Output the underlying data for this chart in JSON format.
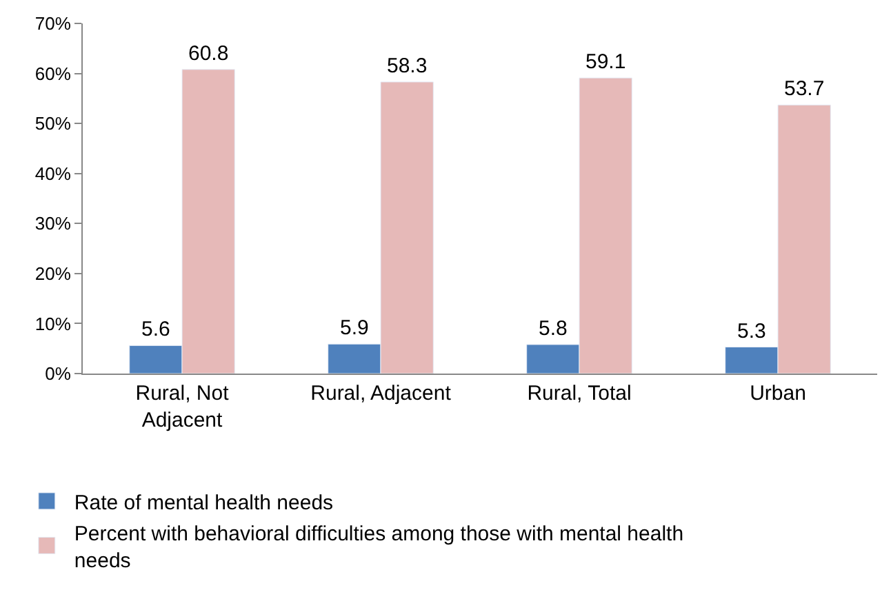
{
  "chart_data": {
    "type": "bar",
    "categories": [
      "Rural, Not Adjacent",
      "Rural, Adjacent",
      "Rural, Total",
      "Urban"
    ],
    "series": [
      {
        "name": "Rate of mental health needs",
        "color": "#4f81bd",
        "values": [
          5.6,
          5.9,
          5.8,
          5.3
        ]
      },
      {
        "name": "Percent with behavioral difficulties among those with mental health needs",
        "color": "#e6b9b8",
        "values": [
          60.8,
          58.3,
          59.1,
          53.7
        ]
      }
    ],
    "ylim": [
      0,
      70
    ],
    "yticks": [
      {
        "value": 0,
        "label": "0%"
      },
      {
        "value": 10,
        "label": "10%"
      },
      {
        "value": 20,
        "label": "20%"
      },
      {
        "value": 30,
        "label": "30%"
      },
      {
        "value": 40,
        "label": "40%"
      },
      {
        "value": 50,
        "label": "50%"
      },
      {
        "value": 60,
        "label": "60%"
      },
      {
        "value": 70,
        "label": "70%"
      }
    ],
    "data_labels": true,
    "legend": "bottom"
  }
}
